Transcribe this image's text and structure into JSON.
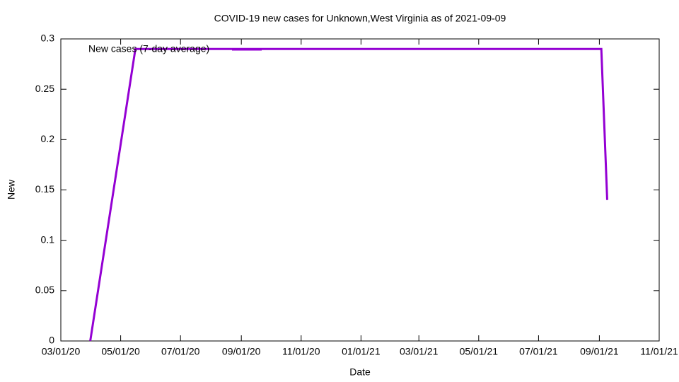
{
  "chart_data": {
    "type": "line",
    "title": "COVID-19 new cases for Unknown,West Virginia as of 2021-09-09",
    "x_label": "Date",
    "y_label": "New",
    "x": [
      "2020-03-31",
      "2020-05-16",
      "2021-09-03",
      "2021-09-09"
    ],
    "series": [
      {
        "name": "New cases (7-day average)",
        "color": "#9400d3",
        "values": [
          0,
          0.29,
          0.29,
          0.14
        ]
      }
    ],
    "xlim": [
      "2020-03-01",
      "2021-11-01"
    ],
    "xticks": [
      {
        "value": "2020-03-01",
        "label": "03/01/20"
      },
      {
        "value": "2020-05-01",
        "label": "05/01/20"
      },
      {
        "value": "2020-07-01",
        "label": "07/01/20"
      },
      {
        "value": "2020-09-01",
        "label": "09/01/20"
      },
      {
        "value": "2020-11-01",
        "label": "11/01/20"
      },
      {
        "value": "2021-01-01",
        "label": "01/01/21"
      },
      {
        "value": "2021-03-01",
        "label": "03/01/21"
      },
      {
        "value": "2021-05-01",
        "label": "05/01/21"
      },
      {
        "value": "2021-07-01",
        "label": "07/01/21"
      },
      {
        "value": "2021-09-01",
        "label": "09/01/21"
      },
      {
        "value": "2021-11-01",
        "label": "11/01/21"
      }
    ],
    "ylim": [
      0,
      0.3
    ],
    "yticks": [
      0,
      0.05,
      0.1,
      0.15,
      0.2,
      0.25,
      0.3
    ],
    "legend": "top left",
    "grid": false
  }
}
